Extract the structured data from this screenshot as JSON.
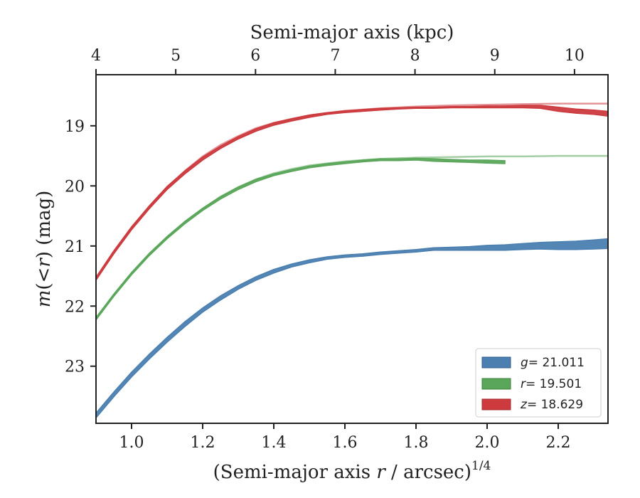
{
  "chart_data": {
    "type": "line",
    "xlabel_main": "(Semi-major axis ",
    "xlabel_italic": "r",
    "xlabel_rest": " / arcsec)",
    "xlabel_sup": "1/4",
    "ylabel_italic": "m",
    "ylabel_mid": "(<",
    "ylabel_italic2": "r",
    "ylabel_rest": ") (mag)",
    "x2label": "Semi-major axis (kpc)",
    "xlim": [
      0.9,
      2.34
    ],
    "ylim": [
      23.95,
      18.15
    ],
    "x_ticks": [
      1.0,
      1.2,
      1.4,
      1.6,
      1.8,
      2.0,
      2.2
    ],
    "x_tick_labels": [
      "1.0",
      "1.2",
      "1.4",
      "1.6",
      "1.8",
      "2.0",
      "2.2"
    ],
    "y_ticks": [
      19,
      20,
      21,
      22,
      23
    ],
    "y_tick_labels": [
      "19",
      "20",
      "21",
      "22",
      "23"
    ],
    "x2_ticks": [
      4,
      5,
      6,
      7,
      8,
      9,
      10
    ],
    "x2_tick_labels": [
      "4",
      "5",
      "6",
      "7",
      "8",
      "9",
      "10"
    ],
    "x2_pixel_scale_kpc_per_arcsec": 1.0,
    "legend_position": "lower-right",
    "series": [
      {
        "name_var": "g",
        "name_val": "= 21.011",
        "color": "#4a7fb0",
        "x": [
          0.9,
          0.95,
          1.0,
          1.05,
          1.1,
          1.15,
          1.2,
          1.25,
          1.3,
          1.35,
          1.4,
          1.45,
          1.5,
          1.55,
          1.6,
          1.65,
          1.7,
          1.75,
          1.8,
          1.85,
          1.9,
          1.95,
          2.0,
          2.05,
          2.1,
          2.15,
          2.2,
          2.25,
          2.3,
          2.34
        ],
        "y_upper": [
          23.78,
          23.43,
          23.1,
          22.8,
          22.52,
          22.26,
          22.03,
          21.83,
          21.66,
          21.51,
          21.39,
          21.3,
          21.23,
          21.18,
          21.15,
          21.13,
          21.1,
          21.08,
          21.06,
          21.03,
          21.02,
          21.01,
          20.99,
          20.98,
          20.96,
          20.94,
          20.93,
          20.92,
          20.9,
          20.88
        ],
        "y_lower": [
          23.86,
          23.51,
          23.18,
          22.88,
          22.6,
          22.34,
          22.1,
          21.9,
          21.72,
          21.57,
          21.45,
          21.35,
          21.28,
          21.22,
          21.19,
          21.17,
          21.14,
          21.12,
          21.1,
          21.07,
          21.07,
          21.07,
          21.07,
          21.07,
          21.06,
          21.05,
          21.06,
          21.06,
          21.05,
          21.04
        ]
      },
      {
        "name_var": "r",
        "name_val": "= 19.501",
        "color": "#5aa65a",
        "x": [
          0.9,
          0.95,
          1.0,
          1.05,
          1.1,
          1.15,
          1.2,
          1.25,
          1.3,
          1.35,
          1.4,
          1.45,
          1.5,
          1.55,
          1.6,
          1.65,
          1.7,
          1.75,
          1.8,
          1.85,
          1.9,
          1.95,
          2.0,
          2.05
        ],
        "y_upper": [
          22.19,
          21.8,
          21.44,
          21.12,
          20.84,
          20.59,
          20.37,
          20.18,
          20.02,
          19.89,
          19.8,
          19.73,
          19.67,
          19.63,
          19.6,
          19.57,
          19.55,
          19.55,
          19.54,
          19.55,
          19.56,
          19.57,
          19.57,
          19.58
        ],
        "y_lower": [
          22.23,
          21.84,
          21.48,
          21.16,
          20.88,
          20.63,
          20.41,
          20.22,
          20.06,
          19.93,
          19.83,
          19.76,
          19.7,
          19.66,
          19.63,
          19.6,
          19.58,
          19.58,
          19.57,
          19.59,
          19.6,
          19.61,
          19.62,
          19.63
        ],
        "model_x": [
          0.9,
          0.95,
          1.0,
          1.05,
          1.1,
          1.15,
          1.2,
          1.25,
          1.3,
          1.35,
          1.4,
          1.45,
          1.5,
          1.6,
          1.7,
          1.8,
          1.9,
          2.0,
          2.1,
          2.2,
          2.34
        ],
        "model_y": [
          22.21,
          21.82,
          21.46,
          21.14,
          20.86,
          20.6,
          20.38,
          20.18,
          20.02,
          19.89,
          19.79,
          19.72,
          19.66,
          19.59,
          19.55,
          19.53,
          19.52,
          19.51,
          19.51,
          19.5,
          19.5
        ]
      },
      {
        "name_var": "z",
        "name_val": "= 18.629",
        "color": "#cc3a3e",
        "x": [
          0.9,
          0.95,
          1.0,
          1.05,
          1.1,
          1.15,
          1.2,
          1.25,
          1.3,
          1.35,
          1.4,
          1.45,
          1.5,
          1.55,
          1.6,
          1.65,
          1.7,
          1.75,
          1.8,
          1.85,
          1.9,
          1.95,
          2.0,
          2.05,
          2.1,
          2.15,
          2.2,
          2.25,
          2.3,
          2.34
        ],
        "y_upper": [
          21.52,
          21.08,
          20.68,
          20.33,
          20.01,
          19.75,
          19.52,
          19.34,
          19.18,
          19.05,
          18.95,
          18.88,
          18.82,
          18.78,
          18.75,
          18.73,
          18.71,
          18.7,
          18.69,
          18.69,
          18.68,
          18.68,
          18.67,
          18.67,
          18.66,
          18.66,
          18.69,
          18.72,
          18.74,
          18.76
        ],
        "y_lower": [
          21.57,
          21.13,
          20.73,
          20.38,
          20.06,
          19.8,
          19.57,
          19.38,
          19.22,
          19.09,
          18.99,
          18.92,
          18.86,
          18.81,
          18.78,
          18.76,
          18.74,
          18.72,
          18.71,
          18.71,
          18.7,
          18.7,
          18.7,
          18.7,
          18.7,
          18.71,
          18.76,
          18.79,
          18.81,
          18.84
        ],
        "model_x": [
          0.9,
          0.95,
          1.0,
          1.05,
          1.1,
          1.15,
          1.2,
          1.25,
          1.3,
          1.35,
          1.4,
          1.5,
          1.6,
          1.7,
          1.8,
          1.9,
          2.0,
          2.1,
          2.2,
          2.34
        ],
        "model_y": [
          21.54,
          21.1,
          20.7,
          20.34,
          20.02,
          19.75,
          19.51,
          19.32,
          19.17,
          19.04,
          18.95,
          18.83,
          18.75,
          18.71,
          18.68,
          18.66,
          18.65,
          18.64,
          18.63,
          18.63
        ]
      }
    ]
  }
}
